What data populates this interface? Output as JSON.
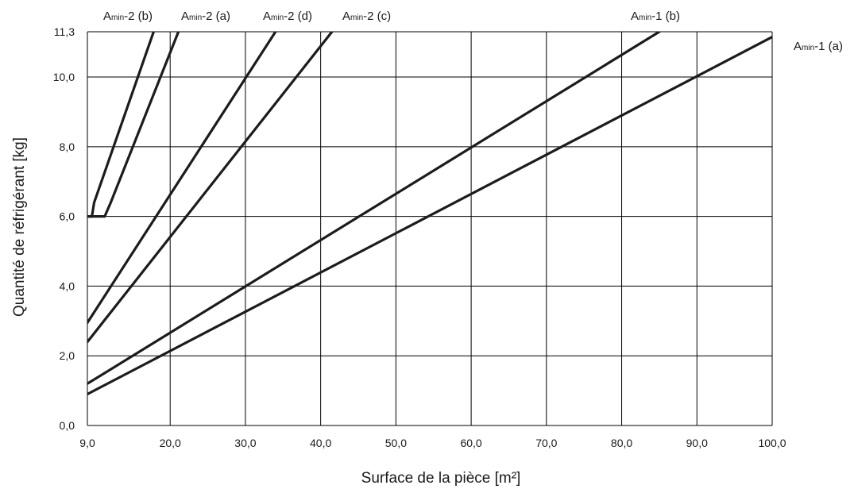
{
  "chart_data": {
    "type": "line",
    "title": "",
    "xlabel": "Surface de la pièce [m²]",
    "ylabel": "Quantité de réfrigérant [kg]",
    "xlim": [
      9.0,
      100.0
    ],
    "ylim": [
      0.0,
      11.3
    ],
    "grid": true,
    "legend": "none (series labeled directly at line ends)",
    "x_ticks": [
      {
        "value": 9,
        "label": "9,0"
      },
      {
        "value": 20,
        "label": "20,0"
      },
      {
        "value": 30,
        "label": "30,0"
      },
      {
        "value": 40,
        "label": "40,0"
      },
      {
        "value": 50,
        "label": "50,0"
      },
      {
        "value": 60,
        "label": "60,0"
      },
      {
        "value": 70,
        "label": "70,0"
      },
      {
        "value": 80,
        "label": "80,0"
      },
      {
        "value": 90,
        "label": "90,0"
      },
      {
        "value": 100,
        "label": "100,0"
      }
    ],
    "y_ticks": [
      {
        "value": 0,
        "label": "0,0"
      },
      {
        "value": 2,
        "label": "2,0"
      },
      {
        "value": 4,
        "label": "4,0"
      },
      {
        "value": 6,
        "label": "6,0"
      },
      {
        "value": 8,
        "label": "8,0"
      },
      {
        "value": 10,
        "label": "10,0"
      },
      {
        "value": 11.3,
        "label": "11,3"
      }
    ],
    "series": [
      {
        "name": "Amin-2 (b)",
        "label_main": "A",
        "label_sub": "min",
        "label_rest": "-2 (b)",
        "points": [
          [
            9.0,
            6.0
          ],
          [
            9.6,
            6.0
          ],
          [
            9.9,
            6.4
          ],
          [
            17.8,
            11.3
          ]
        ]
      },
      {
        "name": "Amin-2 (a)",
        "label_main": "A",
        "label_sub": "min",
        "label_rest": "-2 (a)",
        "points": [
          [
            9.0,
            6.0
          ],
          [
            11.3,
            6.0
          ],
          [
            12.1,
            6.4
          ],
          [
            21.1,
            11.3
          ]
        ]
      },
      {
        "name": "Amin-2 (d)",
        "label_main": "A",
        "label_sub": "min",
        "label_rest": "-2 (d)",
        "points": [
          [
            9.0,
            2.95
          ],
          [
            34.0,
            11.3
          ]
        ]
      },
      {
        "name": "Amin-2 (c)",
        "label_main": "A",
        "label_sub": "min",
        "label_rest": "-2 (c)",
        "points": [
          [
            9.0,
            2.4
          ],
          [
            41.5,
            11.3
          ]
        ]
      },
      {
        "name": "Amin-1 (b)",
        "label_main": "A",
        "label_sub": "min",
        "label_rest": "-1 (b)",
        "points": [
          [
            9.0,
            1.2
          ],
          [
            85.0,
            11.3
          ]
        ]
      },
      {
        "name": "Amin-1 (a)",
        "label_main": "A",
        "label_sub": "min",
        "label_rest": "-1 (a)",
        "points": [
          [
            9.0,
            0.9
          ],
          [
            100.0,
            11.15
          ]
        ]
      }
    ]
  }
}
